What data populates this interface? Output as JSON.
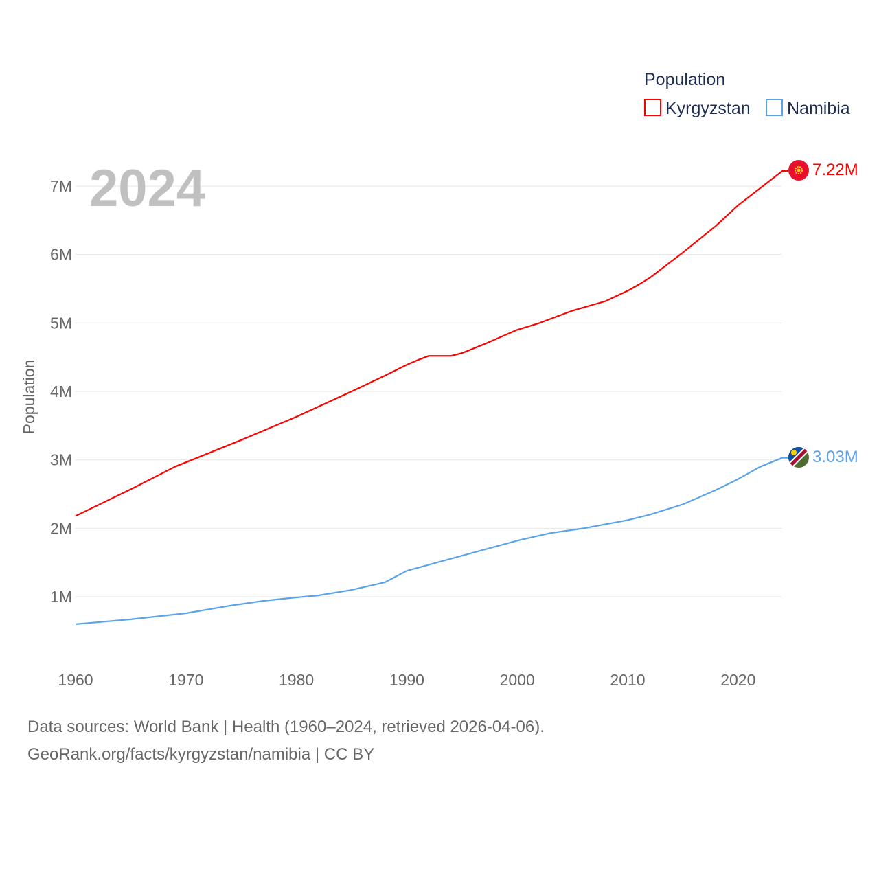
{
  "chart_data": {
    "type": "line",
    "title": "Population",
    "year_label": "2024",
    "ylabel": "Population",
    "xlabel": "",
    "ylim": [
      0,
      7500000
    ],
    "xlim": [
      1960,
      2024
    ],
    "grid": true,
    "legend_placement": "top-right",
    "x_ticks": [
      1960,
      1970,
      1980,
      1990,
      2000,
      2010,
      2020
    ],
    "x_tick_labels": [
      "1960",
      "1970",
      "1980",
      "1990",
      "2000",
      "2010",
      "2020"
    ],
    "y_ticks": [
      1000000,
      2000000,
      3000000,
      4000000,
      5000000,
      6000000,
      7000000
    ],
    "y_tick_labels": [
      "1M",
      "2M",
      "3M",
      "4M",
      "5M",
      "6M",
      "7M"
    ],
    "series": [
      {
        "name": "Kyrgyzstan",
        "color": "#ff0000",
        "end_label": "7.22M",
        "x": [
          1960,
          1965,
          1969,
          1975,
          1980,
          1985,
          1988,
          1990,
          1991,
          1992,
          1994,
          1995,
          1997,
          1999,
          2000,
          2002,
          2005,
          2008,
          2010,
          2011,
          2012,
          2015,
          2018,
          2020,
          2022,
          2024
        ],
        "values": [
          2180000,
          2570000,
          2900000,
          3290000,
          3630000,
          4000000,
          4230000,
          4390000,
          4460000,
          4520000,
          4520000,
          4560000,
          4690000,
          4830000,
          4900000,
          5000000,
          5180000,
          5320000,
          5470000,
          5560000,
          5660000,
          6030000,
          6420000,
          6720000,
          6970000,
          7220000
        ]
      },
      {
        "name": "Namibia",
        "color": "#5ba3e8",
        "end_label": "3.03M",
        "x": [
          1960,
          1965,
          1970,
          1974,
          1977,
          1980,
          1982,
          1985,
          1988,
          1990,
          1995,
          2000,
          2003,
          2006,
          2010,
          2012,
          2015,
          2018,
          2020,
          2022,
          2024
        ],
        "values": [
          600000,
          670000,
          760000,
          870000,
          940000,
          990000,
          1020000,
          1100000,
          1210000,
          1380000,
          1600000,
          1820000,
          1930000,
          2000000,
          2120000,
          2200000,
          2350000,
          2560000,
          2720000,
          2900000,
          3030000
        ]
      }
    ]
  },
  "footer": {
    "line1": "Data sources: World Bank | Health (1960–2024, retrieved 2026-04-06).",
    "line2": "GeoRank.org/facts/kyrgyzstan/namibia | CC BY"
  },
  "icons": {
    "kyrgyzstan_flag": "kyrgyzstan-flag-icon",
    "namibia_flag": "namibia-flag-icon"
  }
}
